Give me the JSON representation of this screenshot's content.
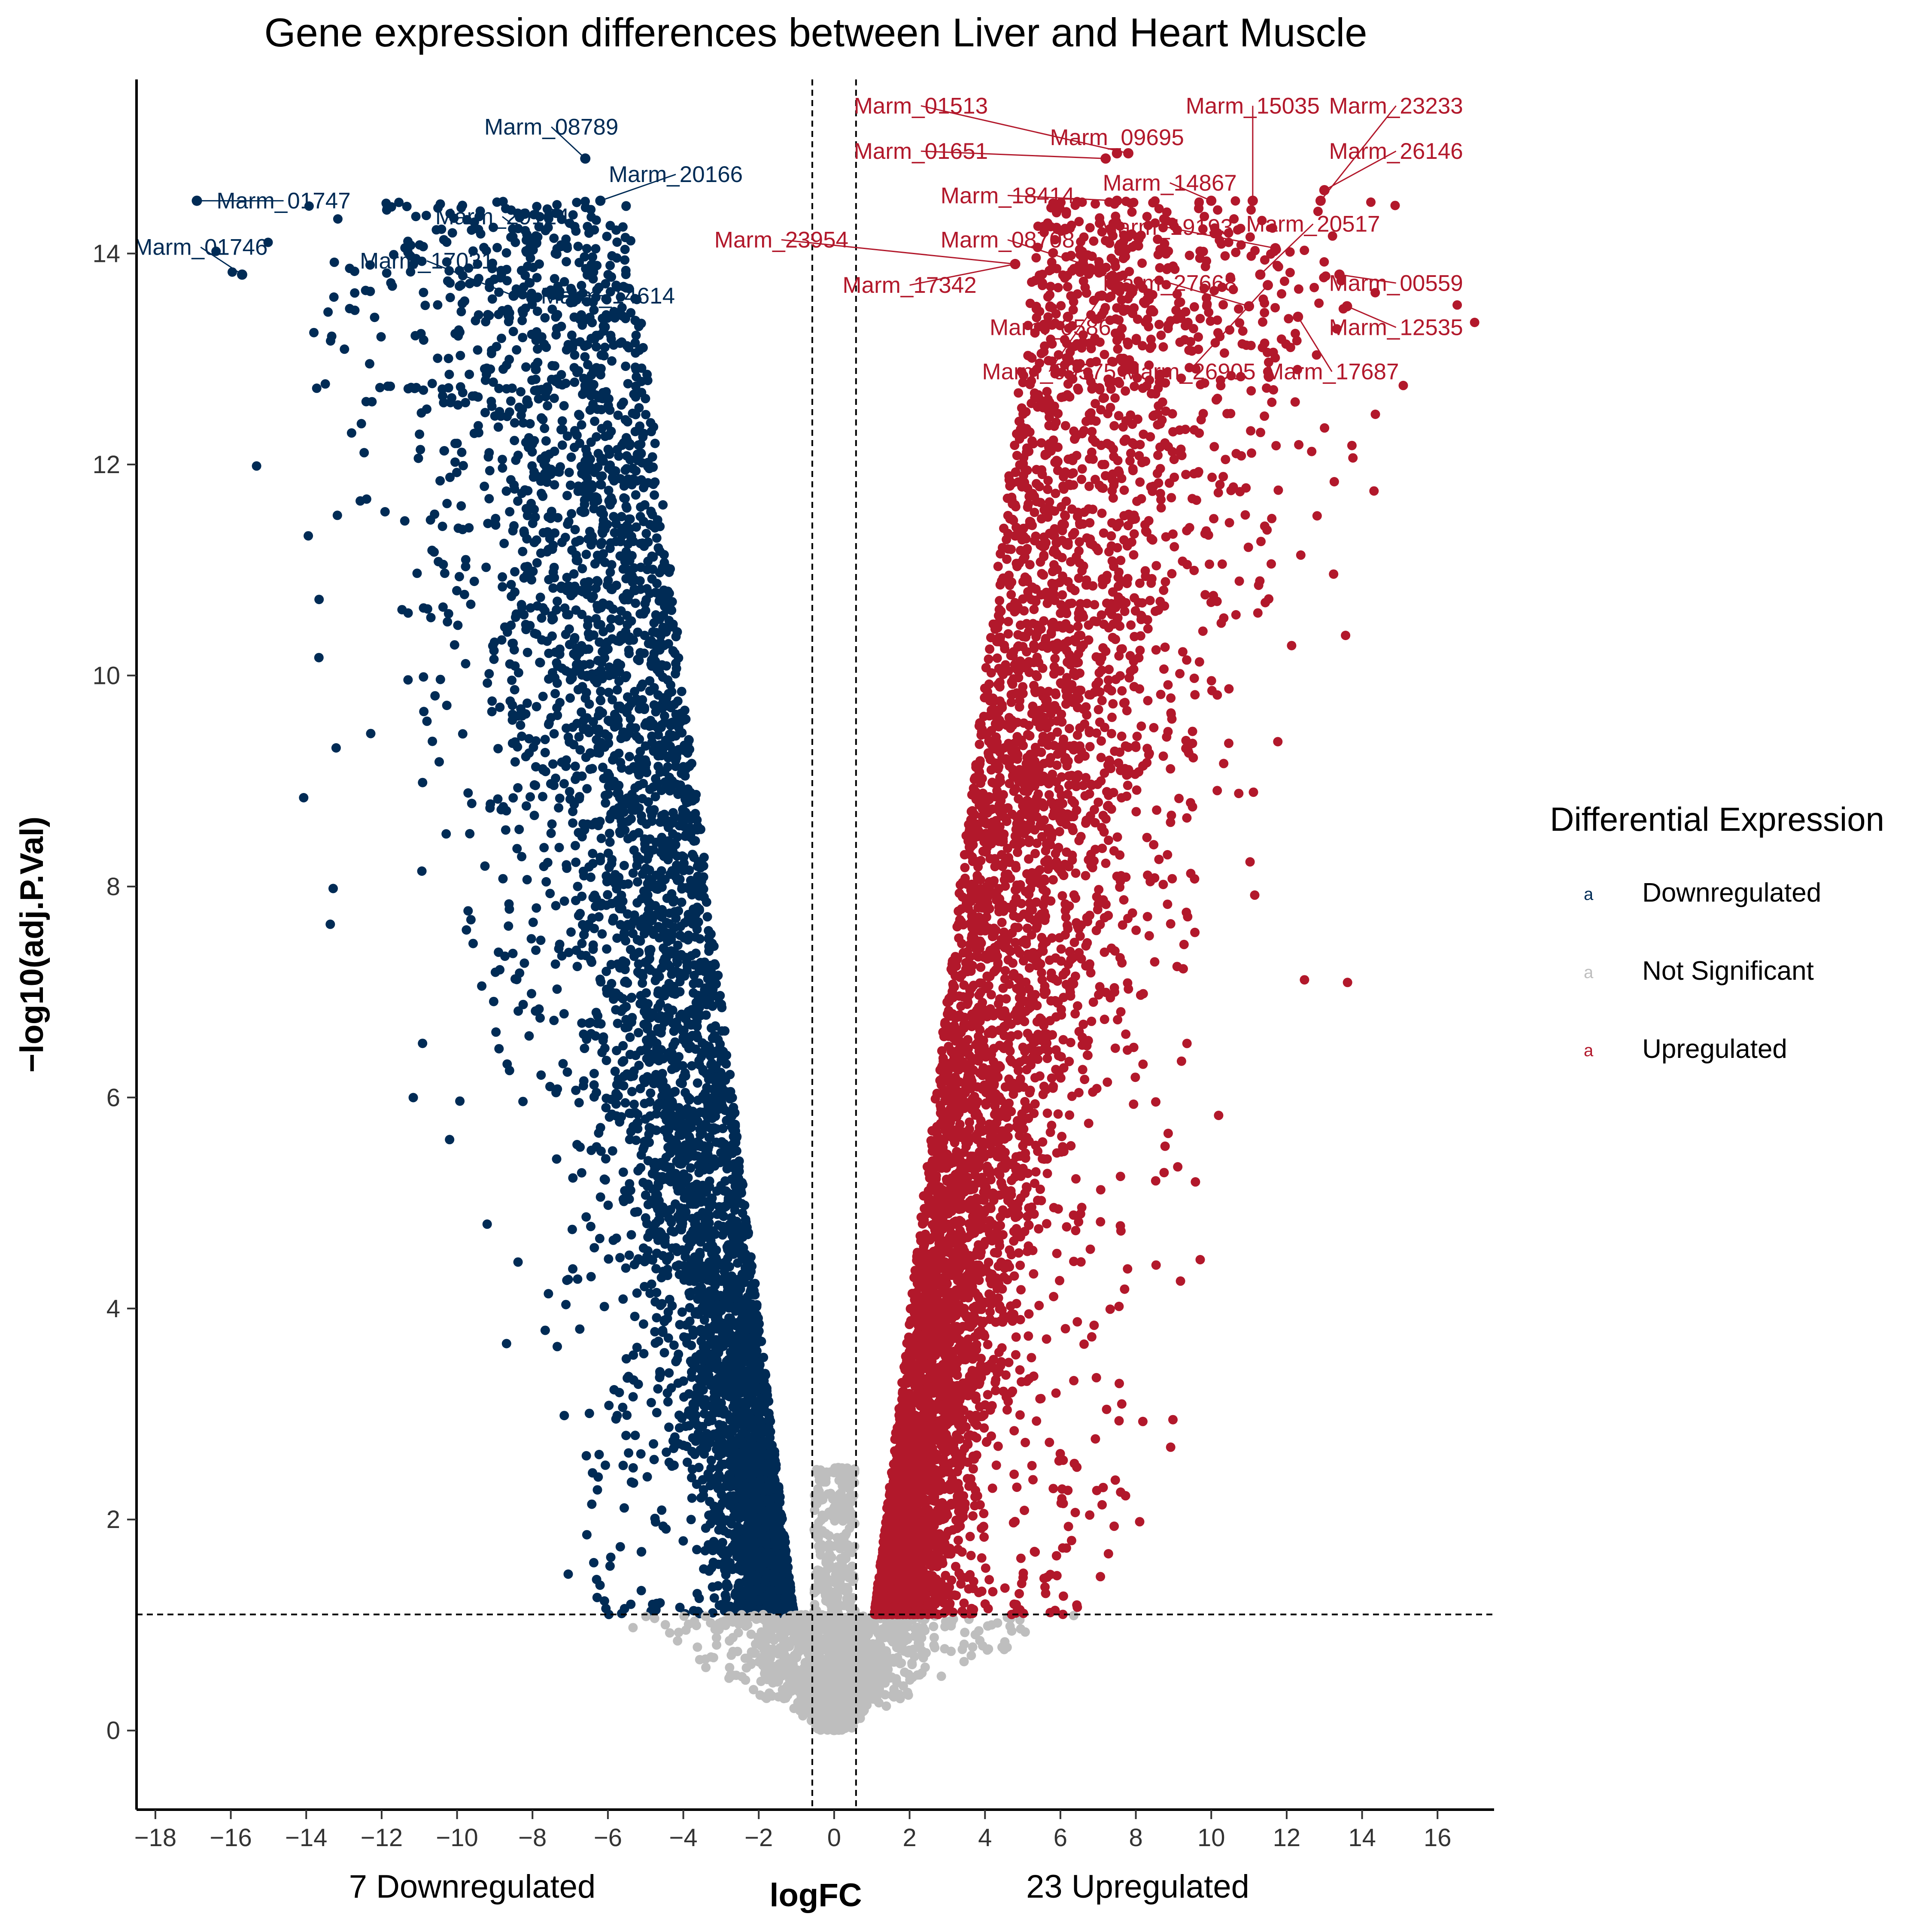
{
  "colors": {
    "down": "#002B55",
    "ns": "#BEBEBE",
    "up": "#B2182B",
    "axis": "#000000",
    "threshold": "#000000"
  },
  "chart_data": {
    "type": "scatter",
    "title": "Gene expression differences between Liver and Heart Muscle",
    "xlabel": "logFC",
    "ylabel": "−log10(adj.P.Val)",
    "xlim": [
      -18.5,
      17.5
    ],
    "ylim": [
      -0.75,
      15.65
    ],
    "x_ticks": [
      -18,
      -16,
      -14,
      -12,
      -10,
      -8,
      -6,
      -4,
      -2,
      0,
      2,
      4,
      6,
      8,
      10,
      12,
      14,
      16
    ],
    "x_tick_labels": [
      "−18",
      "−16",
      "−14",
      "−12",
      "−10",
      "−8",
      "−6",
      "−4",
      "−2",
      "0",
      "2",
      "4",
      "6",
      "8",
      "10",
      "12",
      "14",
      "16"
    ],
    "y_ticks": [
      0,
      2,
      4,
      6,
      8,
      10,
      12,
      14
    ],
    "y_tick_labels": [
      "0",
      "2",
      "4",
      "6",
      "8",
      "10",
      "12",
      "14"
    ],
    "thresholds": {
      "logfc": [
        -0.58,
        0.58
      ],
      "neglog10p": 1.1
    },
    "grid": false,
    "legend": {
      "title": "Differential Expression",
      "placement": "right",
      "glyph": "a",
      "entries": [
        {
          "label": "Downregulated",
          "color": "#002B55"
        },
        {
          "label": "Not Significant",
          "color": "#BEBEBE"
        },
        {
          "label": "Upregulated",
          "color": "#B2182B"
        }
      ]
    },
    "count_labels": {
      "down": "7 Downregulated",
      "up": "23 Upregulated"
    },
    "series": [
      {
        "name": "Downregulated",
        "n_points": 5200
      },
      {
        "name": "Not Significant",
        "n_points": 1400
      },
      {
        "name": "Upregulated",
        "n_points": 5800
      }
    ],
    "labeled_genes": [
      {
        "name": "Marm_08789",
        "x": -6.6,
        "y": 14.9,
        "lx": -7.5,
        "ly": 15.2,
        "group": "down"
      },
      {
        "name": "Marm_20166",
        "x": -6.2,
        "y": 14.5,
        "lx": -4.2,
        "ly": 14.75,
        "group": "down"
      },
      {
        "name": "Marm_01747",
        "x": -16.9,
        "y": 14.5,
        "lx": -14.6,
        "ly": 14.5,
        "group": "down"
      },
      {
        "name": "Marm_29124",
        "x": -7.9,
        "y": 14.1,
        "lx": -8.8,
        "ly": 14.35,
        "group": "down"
      },
      {
        "name": "Marm_01746",
        "x": -15.7,
        "y": 13.8,
        "lx": -16.8,
        "ly": 14.06,
        "group": "down"
      },
      {
        "name": "Marm_17031",
        "x": -8.5,
        "y": 13.6,
        "lx": -10.8,
        "ly": 13.93,
        "group": "down"
      },
      {
        "name": "Marm_14614",
        "x": -7.3,
        "y": 13.6,
        "lx": -6.0,
        "ly": 13.6,
        "group": "down"
      },
      {
        "name": "Marm_01513",
        "x": 7.8,
        "y": 14.95,
        "lx": 2.3,
        "ly": 15.4,
        "group": "up"
      },
      {
        "name": "Marm_09695",
        "x": 7.5,
        "y": 14.95,
        "lx": 7.5,
        "ly": 15.1,
        "group": "up"
      },
      {
        "name": "Marm_15035",
        "x": 11.1,
        "y": 14.5,
        "lx": 11.1,
        "ly": 15.4,
        "group": "up"
      },
      {
        "name": "Marm_23233",
        "x": 12.9,
        "y": 14.5,
        "lx": 14.9,
        "ly": 15.4,
        "group": "up"
      },
      {
        "name": "Marm_01651",
        "x": 7.2,
        "y": 14.9,
        "lx": 2.3,
        "ly": 14.97,
        "group": "up"
      },
      {
        "name": "Marm_26146",
        "x": 13.0,
        "y": 14.6,
        "lx": 14.9,
        "ly": 14.97,
        "group": "up"
      },
      {
        "name": "Marm_14867",
        "x": 10.0,
        "y": 14.5,
        "lx": 8.9,
        "ly": 14.67,
        "group": "up"
      },
      {
        "name": "Marm_18414",
        "x": 7.5,
        "y": 14.5,
        "lx": 4.6,
        "ly": 14.55,
        "group": "up"
      },
      {
        "name": "Marm_19193",
        "x": 11.7,
        "y": 14.05,
        "lx": 8.8,
        "ly": 14.25,
        "group": "up"
      },
      {
        "name": "Marm_20517",
        "x": 11.3,
        "y": 13.8,
        "lx": 12.7,
        "ly": 14.28,
        "group": "up"
      },
      {
        "name": "Marm_23954",
        "x": 4.8,
        "y": 13.9,
        "lx": -1.4,
        "ly": 14.13,
        "group": "up"
      },
      {
        "name": "Marm_08708",
        "x": 6.6,
        "y": 13.9,
        "lx": 4.6,
        "ly": 14.13,
        "group": "up"
      },
      {
        "name": "Marm_17342",
        "x": 4.8,
        "y": 13.9,
        "lx": 2.0,
        "ly": 13.7,
        "group": "up"
      },
      {
        "name": "Marm_27668",
        "x": 11.0,
        "y": 13.5,
        "lx": 8.9,
        "ly": 13.72,
        "group": "up"
      },
      {
        "name": "Marm_00559",
        "x": 13.4,
        "y": 13.8,
        "lx": 14.9,
        "ly": 13.72,
        "group": "up"
      },
      {
        "name": "Marm_05862",
        "x": 6.2,
        "y": 13.4,
        "lx": 5.9,
        "ly": 13.3,
        "group": "up"
      },
      {
        "name": "Marm_12535",
        "x": 13.6,
        "y": 13.5,
        "lx": 14.9,
        "ly": 13.3,
        "group": "up"
      },
      {
        "name": "Marm_09575",
        "x": 7.1,
        "y": 13.6,
        "lx": 5.7,
        "ly": 12.88,
        "group": "up"
      },
      {
        "name": "Marm_26905",
        "x": 11.5,
        "y": 13.7,
        "lx": 9.4,
        "ly": 12.88,
        "group": "up"
      },
      {
        "name": "Marm_17687",
        "x": 12.3,
        "y": 13.4,
        "lx": 13.2,
        "ly": 12.88,
        "group": "up"
      }
    ]
  }
}
